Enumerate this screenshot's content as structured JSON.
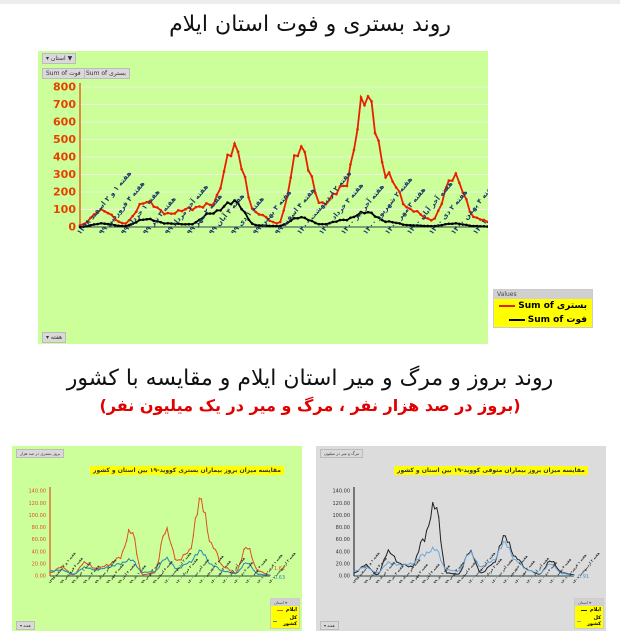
{
  "top": {
    "title": "روند بستری و فوت استان ایلام",
    "filter_chip": "استان ▾",
    "value_chips": [
      "بستری Sum of",
      "فوت Sum of"
    ],
    "axis_chip": "هفته ▾",
    "legend": {
      "header": "Values",
      "items": [
        {
          "label": "بستری Sum of",
          "color": "#e82000"
        },
        {
          "label": "فوت Sum of",
          "color": "#000000"
        }
      ]
    },
    "end_labels": {
      "hospitalized": "10",
      "deaths": "0"
    }
  },
  "bottom": {
    "title": "روند بروز و مرگ و میر استان ایلام و مقایسه با کشور",
    "subtitle": "(بروز در صد هزار نفر ، مرگ و میر در یک میلیون نفر)",
    "left": {
      "corner_label": "بروز بستری در صد هزار",
      "chart_title": "مقایسه میزان بروز بیماران بستری کووید-۱۹ بین استان و کشور",
      "legend_header": "استان ▾",
      "legend": [
        {
          "label": "ایلام",
          "color": "#e05020"
        },
        {
          "label": "کل کشور",
          "color": "#2a8ab8"
        }
      ],
      "end_labels": {
        "province": "1.62",
        "country": "0.63"
      },
      "axis_chip": "هفته ▾"
    },
    "right": {
      "corner_label": "مرگ و میر در میلیون",
      "chart_title": "مقایسه میزان بروز بیماران متوفی کووید-۱۹ بین استان و کشور",
      "legend_header": "استان ▾",
      "legend": [
        {
          "label": "ایلام",
          "color": "#222222"
        },
        {
          "label": "کل کشور",
          "color": "#6aa8e0"
        }
      ],
      "end_labels": {
        "country": "0.91"
      },
      "axis_chip": "هفته ▾"
    }
  },
  "chart_data": [
    {
      "type": "line",
      "title": "روند بستری و فوت استان ایلام",
      "xlabel": "هفته",
      "ylabel": "",
      "ylim": [
        0,
        800
      ],
      "y2lim": [
        0,
        400
      ],
      "yticks": [
        0,
        100,
        200,
        300,
        400,
        500,
        600,
        700,
        800
      ],
      "y2ticks": [
        0,
        50,
        100,
        150,
        200,
        250,
        300,
        350,
        400
      ],
      "categories": [
        "هفته ۱ و ۲ اسفند ۱۳۹۸",
        "هفته ۴ فروردین ۹۹",
        "هفته ۱ خرداد ۹۹",
        "هفته ۳ تیر ۹۹",
        "هفته آخر مرداد ۹۹",
        "هفته ۲ مهر ۹۹",
        "هفته ۴ آبان ۹۹",
        "هفته ۱ دی ۹۹",
        "هفته ۳ بهمن ۹۹",
        "هفته ۴ اسفند ۹۹",
        "هفته ۲ اردیبهشت ۱۴۰۰",
        "هفته ۳ خرداد ۱۴۰۰",
        "هفته آخر تیر ۱۴۰۰",
        "هفته ۲ شهریور ۱۴۰۰",
        "هفته ۳ مهر ۱۴۰۰",
        "هفته آخر آبان ۱۴۰۰",
        "هفته ۲ دی ۱۴۰۰",
        "هفته ۴ بهمن ۱۴۰۰",
        "هفته ۱ فروردین ۱۴۰۱",
        "هفته ۳ اردیبهشت ۱۴۰۱"
      ],
      "series": [
        {
          "name": "Sum of بستری",
          "color": "#e82000",
          "values": [
            10,
            95,
            20,
            145,
            75,
            105,
            130,
            455,
            80,
            20,
            450,
            130,
            230,
            750,
            290,
            100,
            40,
            290,
            50,
            10
          ]
        },
        {
          "name": "Sum of فوت",
          "color": "#000000",
          "values": [
            0,
            20,
            5,
            45,
            20,
            15,
            80,
            145,
            10,
            5,
            55,
            15,
            40,
            85,
            30,
            10,
            5,
            20,
            5,
            0
          ]
        }
      ],
      "end_labels": {
        "بستری": 10,
        "فوت": 0
      },
      "legend_position": "bottom-right",
      "grid": true
    },
    {
      "type": "line",
      "title": "مقایسه میزان بروز بیماران بستری کووید-۱۹ بین استان و کشور",
      "ylim": [
        0,
        140
      ],
      "yticks": [
        "0.00",
        "20.00",
        "40.00",
        "60.00",
        "80.00",
        "100.00",
        "120.00",
        "140.00"
      ],
      "series": [
        {
          "name": "ایلام",
          "color": "#e05020",
          "values": [
            5,
            15,
            2,
            22,
            12,
            18,
            30,
            75,
            2,
            5,
            75,
            25,
            40,
            125,
            50,
            15,
            5,
            48,
            8,
            1.62
          ]
        },
        {
          "name": "کل کشور",
          "color": "#2a8ab8",
          "values": [
            8,
            10,
            3,
            14,
            10,
            14,
            20,
            27,
            6,
            7,
            29,
            12,
            22,
            41,
            18,
            8,
            4,
            22,
            3,
            0.63
          ]
        }
      ],
      "end_labels": {
        "ایلام": 1.62,
        "کل کشور": 0.63
      },
      "legend_position": "bottom-right"
    },
    {
      "type": "line",
      "title": "مقایسه میزان بروز بیماران متوفی کووید-۱۹ بین استان و کشور",
      "ylim": [
        0,
        140
      ],
      "yticks": [
        "0.00",
        "20.00",
        "40.00",
        "60.00",
        "80.00",
        "100.00",
        "120.00",
        "140.00"
      ],
      "series": [
        {
          "name": "ایلام",
          "color": "#222222",
          "values": [
            5,
            18,
            2,
            40,
            20,
            15,
            60,
            118,
            5,
            3,
            40,
            5,
            20,
            65,
            30,
            10,
            3,
            25,
            5,
            2
          ]
        },
        {
          "name": "کل کشور",
          "color": "#6aa8e0",
          "values": [
            8,
            15,
            5,
            22,
            18,
            20,
            35,
            45,
            10,
            8,
            38,
            15,
            25,
            55,
            25,
            10,
            4,
            20,
            4,
            0.91
          ]
        }
      ],
      "end_labels": {
        "کل کشور": 0.91
      },
      "legend_position": "bottom-right"
    }
  ]
}
